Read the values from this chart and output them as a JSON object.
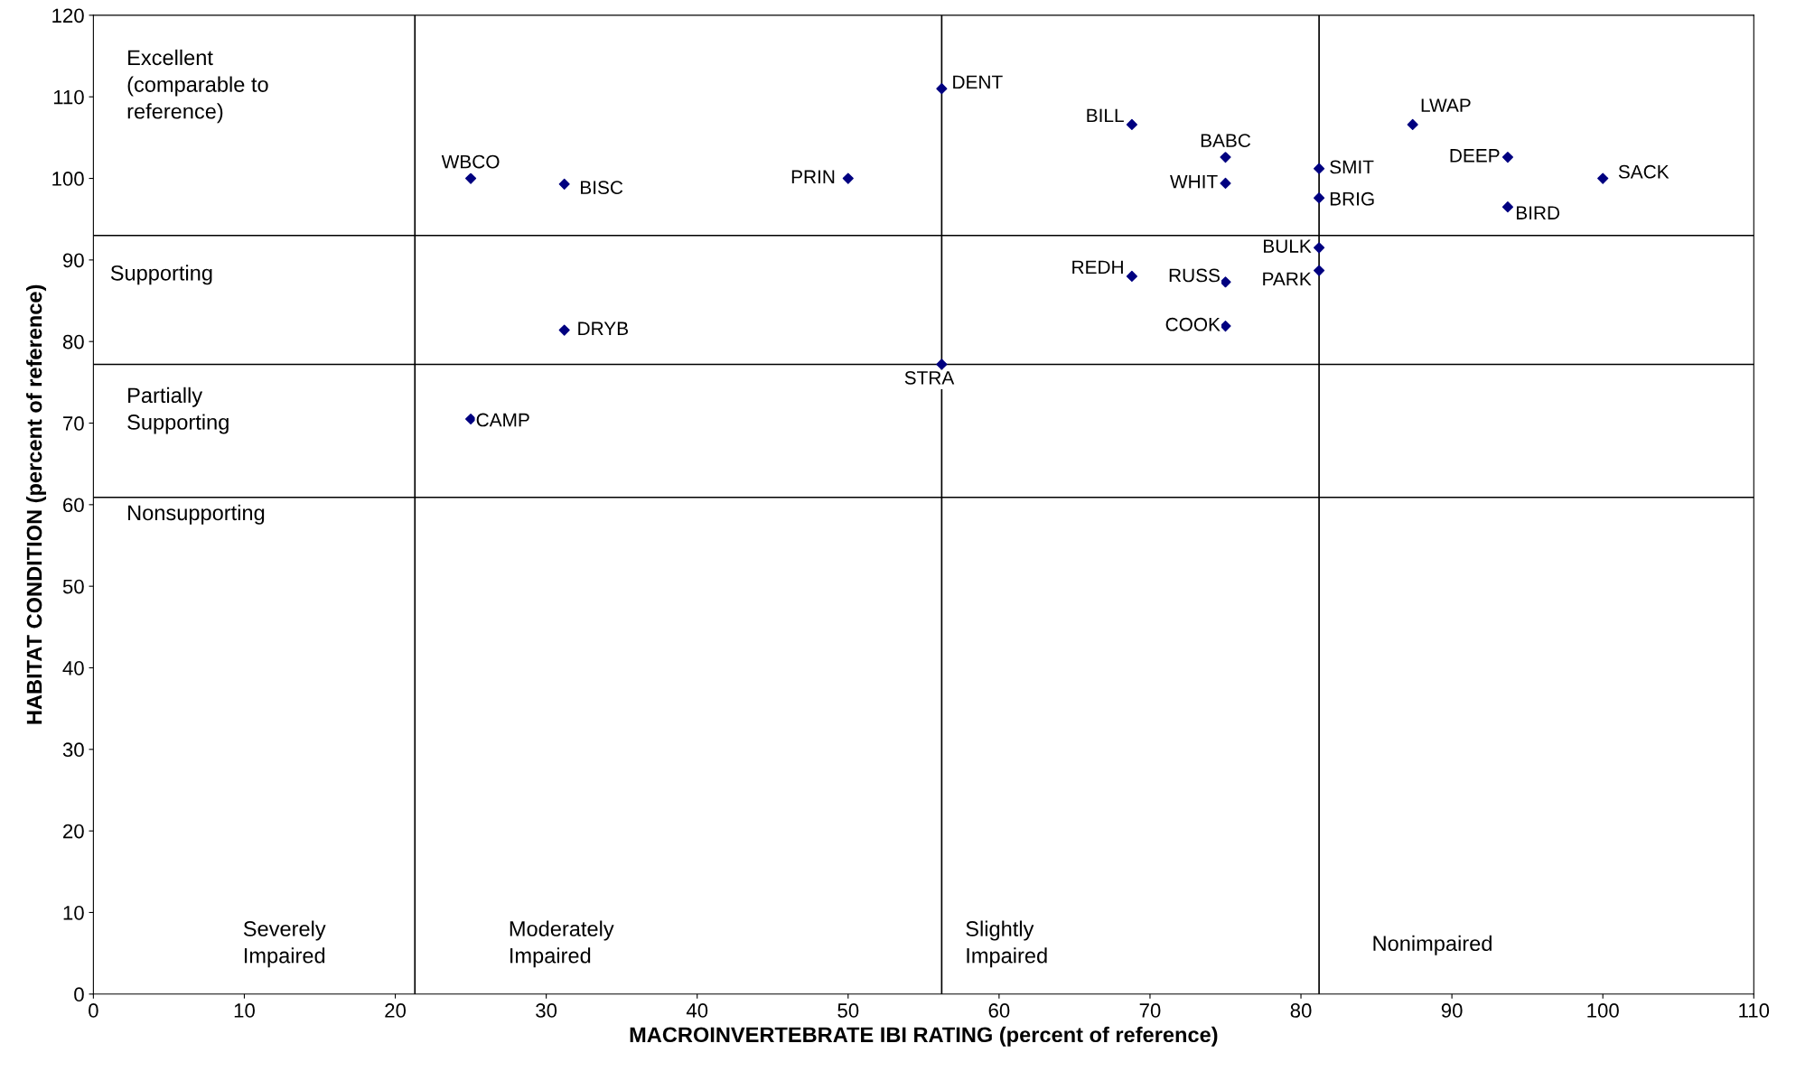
{
  "chart_data": {
    "type": "scatter",
    "xlabel": "MACROINVERTEBRATE IBI RATING (percent of reference)",
    "ylabel": "HABITAT CONDITION (percent of reference)",
    "x": [
      25,
      31.2,
      50,
      56.2,
      68.8,
      75,
      75,
      81.2,
      81.2,
      87.4,
      93.7,
      100,
      93.7,
      81.2,
      81.2,
      68.8,
      75,
      75,
      31.2,
      56.2,
      25
    ],
    "values": [
      100,
      99.3,
      100,
      111,
      106.6,
      102.6,
      99.4,
      101.2,
      97.6,
      106.6,
      102.6,
      100,
      96.5,
      91.5,
      88.7,
      88,
      87.3,
      81.9,
      81.4,
      77.2,
      70.5
    ],
    "value_labels": [
      "WBCO",
      "BISC",
      "PRIN",
      "DENT",
      "BILL",
      "BABC",
      "WHIT",
      "SMIT",
      "BRIG",
      "LWAP",
      "DEEP",
      "SACK",
      "BIRD",
      "BULK",
      "PARK",
      "REDH",
      "RUSS",
      "COOK",
      "DRYB",
      "STRA",
      "CAMP"
    ],
    "color": "#000080",
    "marker": "diamond",
    "grid": false,
    "legend": false,
    "xlim": [
      0,
      110
    ],
    "xticks": [
      0,
      10,
      20,
      30,
      40,
      50,
      60,
      70,
      80,
      90,
      100,
      110
    ],
    "ylim": [
      0,
      120
    ],
    "yticks": [
      0,
      10,
      20,
      30,
      40,
      50,
      60,
      70,
      80,
      90,
      100,
      110,
      120
    ],
    "ref_lines": [
      {
        "axis": "x",
        "value": 21.3,
        "color": "#000000"
      },
      {
        "axis": "x",
        "value": 56.2,
        "color": "#000000"
      },
      {
        "axis": "x",
        "value": 81.2,
        "color": "#000000"
      },
      {
        "axis": "y",
        "value": 93,
        "color": "#000000"
      },
      {
        "axis": "y",
        "value": 77.2,
        "color": "#000000"
      },
      {
        "axis": "y",
        "value": 60.9,
        "color": "#000000"
      }
    ],
    "annotations": [
      "Excellent\n(comparable to\nreference)",
      "Supporting",
      "Partially\nSupporting",
      "Nonsupporting",
      "Severely\nImpaired",
      "Moderately\nImpaired",
      "Slightly\nImpaired",
      "Nonimpaired"
    ]
  }
}
